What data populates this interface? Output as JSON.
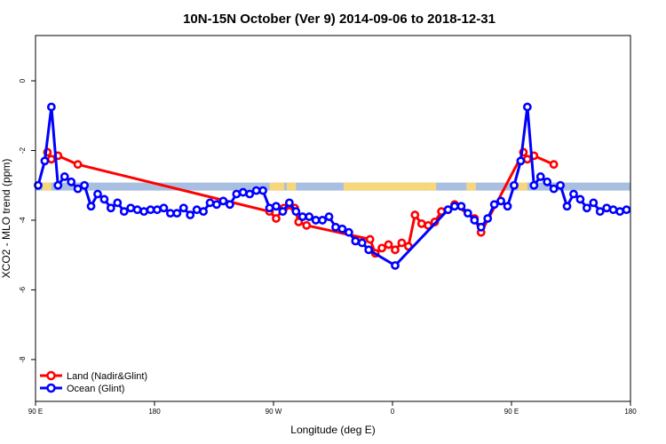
{
  "chart_data": {
    "type": "line",
    "title": "10N-15N October (Ver 9)   2014-09-06 to 2018-12-31",
    "xlabel": "Longitude (deg E)",
    "ylabel": "XCO2 - MLO trend (ppm)",
    "xlim": [
      90,
      540
    ],
    "ylim": [
      -9.2,
      1.3
    ],
    "x_ticks": [
      {
        "value": 90,
        "label": "90 E"
      },
      {
        "value": 180,
        "label": "180"
      },
      {
        "value": 270,
        "label": "90 W"
      },
      {
        "value": 360,
        "label": "0"
      },
      {
        "value": 450,
        "label": "90 E"
      },
      {
        "value": 540,
        "label": "180"
      }
    ],
    "y_ticks": [
      {
        "value": 0,
        "label": "0"
      },
      {
        "value": -2,
        "label": "-2"
      },
      {
        "value": -4,
        "label": "-4"
      },
      {
        "value": -6,
        "label": "-6"
      },
      {
        "value": -8,
        "label": "-8"
      }
    ],
    "land_band": {
      "y_top": -2.92,
      "y_bottom": -3.15,
      "ocean_color": "#a9bfe1",
      "land_color": "#f7d77d"
    },
    "land_spans": [
      [
        95,
        102
      ],
      [
        267,
        278
      ],
      [
        280,
        287
      ],
      [
        323,
        385
      ],
      [
        385,
        393
      ],
      [
        416,
        423
      ],
      [
        455,
        462
      ]
    ],
    "legend_position": "bottom-left",
    "series": [
      {
        "name": "Land (Nadir&Glint)",
        "color": "#ff0000",
        "points": [
          [
            99,
            -2.05
          ],
          [
            102,
            -2.25
          ],
          [
            107,
            -2.15
          ],
          [
            122,
            -2.4
          ],
          [
            267,
            -3.75
          ],
          [
            272,
            -3.95
          ],
          [
            278,
            -3.65
          ],
          [
            286,
            -3.65
          ],
          [
            289,
            -4.05
          ],
          [
            295,
            -4.15
          ],
          [
            343,
            -4.55
          ],
          [
            347,
            -4.95
          ],
          [
            352,
            -4.8
          ],
          [
            357,
            -4.7
          ],
          [
            362,
            -4.85
          ],
          [
            367,
            -4.65
          ],
          [
            372,
            -4.75
          ],
          [
            377,
            -3.85
          ],
          [
            382,
            -4.1
          ],
          [
            387,
            -4.15
          ],
          [
            392,
            -4.05
          ],
          [
            397,
            -3.75
          ],
          [
            402,
            -3.7
          ],
          [
            407,
            -3.55
          ],
          [
            422,
            -3.95
          ],
          [
            427,
            -4.35
          ],
          [
            459,
            -2.05
          ],
          [
            462,
            -2.25
          ],
          [
            467,
            -2.15
          ],
          [
            482,
            -2.4
          ]
        ]
      },
      {
        "name": "Ocean (Glint)",
        "color": "#0000ff",
        "points": [
          [
            92,
            -3.0
          ],
          [
            97,
            -2.3
          ],
          [
            102,
            -0.75
          ],
          [
            107,
            -3.0
          ],
          [
            112,
            -2.75
          ],
          [
            117,
            -2.9
          ],
          [
            122,
            -3.1
          ],
          [
            127,
            -3.0
          ],
          [
            132,
            -3.6
          ],
          [
            137,
            -3.25
          ],
          [
            142,
            -3.4
          ],
          [
            147,
            -3.65
          ],
          [
            152,
            -3.5
          ],
          [
            157,
            -3.75
          ],
          [
            162,
            -3.65
          ],
          [
            167,
            -3.7
          ],
          [
            172,
            -3.75
          ],
          [
            177,
            -3.7
          ],
          [
            182,
            -3.7
          ],
          [
            187,
            -3.65
          ],
          [
            192,
            -3.8
          ],
          [
            197,
            -3.8
          ],
          [
            202,
            -3.65
          ],
          [
            207,
            -3.85
          ],
          [
            212,
            -3.7
          ],
          [
            217,
            -3.75
          ],
          [
            222,
            -3.5
          ],
          [
            227,
            -3.55
          ],
          [
            232,
            -3.45
          ],
          [
            237,
            -3.55
          ],
          [
            242,
            -3.25
          ],
          [
            247,
            -3.2
          ],
          [
            252,
            -3.25
          ],
          [
            257,
            -3.15
          ],
          [
            262,
            -3.15
          ],
          [
            267,
            -3.65
          ],
          [
            272,
            -3.6
          ],
          [
            277,
            -3.75
          ],
          [
            282,
            -3.5
          ],
          [
            287,
            -3.75
          ],
          [
            292,
            -3.9
          ],
          [
            297,
            -3.9
          ],
          [
            302,
            -4.0
          ],
          [
            307,
            -4.0
          ],
          [
            312,
            -3.9
          ],
          [
            317,
            -4.2
          ],
          [
            322,
            -4.25
          ],
          [
            327,
            -4.35
          ],
          [
            332,
            -4.6
          ],
          [
            337,
            -4.65
          ],
          [
            342,
            -4.85
          ],
          [
            362,
            -5.3
          ],
          [
            402,
            -3.7
          ],
          [
            407,
            -3.6
          ],
          [
            412,
            -3.6
          ],
          [
            417,
            -3.8
          ],
          [
            422,
            -4.0
          ],
          [
            427,
            -4.2
          ],
          [
            432,
            -3.95
          ],
          [
            437,
            -3.55
          ],
          [
            442,
            -3.45
          ],
          [
            447,
            -3.6
          ],
          [
            452,
            -3.0
          ],
          [
            457,
            -2.3
          ],
          [
            462,
            -0.75
          ],
          [
            467,
            -3.0
          ],
          [
            472,
            -2.75
          ],
          [
            477,
            -2.9
          ],
          [
            482,
            -3.1
          ],
          [
            487,
            -3.0
          ],
          [
            492,
            -3.6
          ],
          [
            497,
            -3.25
          ],
          [
            502,
            -3.4
          ],
          [
            507,
            -3.65
          ],
          [
            512,
            -3.5
          ],
          [
            517,
            -3.75
          ],
          [
            522,
            -3.65
          ],
          [
            527,
            -3.7
          ],
          [
            532,
            -3.75
          ],
          [
            537,
            -3.7
          ]
        ]
      }
    ]
  }
}
